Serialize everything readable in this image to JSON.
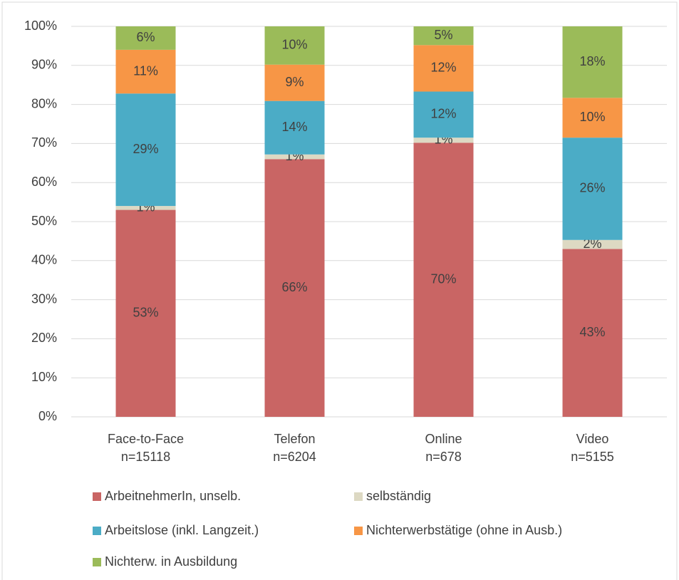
{
  "chart_data": {
    "type": "stacked_bar",
    "categories": [
      [
        "Face-to-Face",
        "n=15118"
      ],
      [
        "Telefon",
        "n=6204"
      ],
      [
        "Online",
        "n=678"
      ],
      [
        "Video",
        "n=5155"
      ]
    ],
    "series": [
      {
        "name": "ArbeitnehmerIn, unselb.",
        "color": "#c96564",
        "values": [
          53,
          66,
          70.2,
          43
        ],
        "value_labels": [
          "53%",
          "66%",
          "70%",
          "43%"
        ]
      },
      {
        "name": "selbständig",
        "color": "#ddd9c3",
        "values": [
          1.0,
          1.2,
          1.3,
          2.3
        ],
        "value_labels": [
          "1%",
          "1%",
          "1%",
          "2%"
        ]
      },
      {
        "name": "Arbeitslose (inkl. Langzeit.)",
        "color": "#4bacc6",
        "values": [
          28.8,
          13.7,
          11.8,
          26.2
        ],
        "value_labels": [
          "29%",
          "14%",
          "12%",
          "26%"
        ]
      },
      {
        "name": "Nichterwerbstätige (ohne in Ausb.)",
        "color": "#f79646",
        "values": [
          11.2,
          9.3,
          11.9,
          10.2
        ],
        "value_labels": [
          "11%",
          "9%",
          "12%",
          "10%"
        ]
      },
      {
        "name": "Nichterw. in Ausbildung",
        "color": "#9bbb59",
        "values": [
          6.0,
          9.8,
          4.8,
          18.3
        ],
        "value_labels": [
          "6%",
          "10%",
          "5%",
          "18%"
        ]
      }
    ],
    "ylim": [
      0,
      100
    ],
    "yticks": [
      {
        "value": 0,
        "label": "0%"
      },
      {
        "value": 10,
        "label": "10%"
      },
      {
        "value": 20,
        "label": "20%"
      },
      {
        "value": 30,
        "label": "30%"
      },
      {
        "value": 40,
        "label": "40%"
      },
      {
        "value": 50,
        "label": "50%"
      },
      {
        "value": 60,
        "label": "60%"
      },
      {
        "value": 70,
        "label": "70%"
      },
      {
        "value": 80,
        "label": "80%"
      },
      {
        "value": 90,
        "label": "90%"
      },
      {
        "value": 100,
        "label": "100%"
      }
    ],
    "grid": true
  }
}
